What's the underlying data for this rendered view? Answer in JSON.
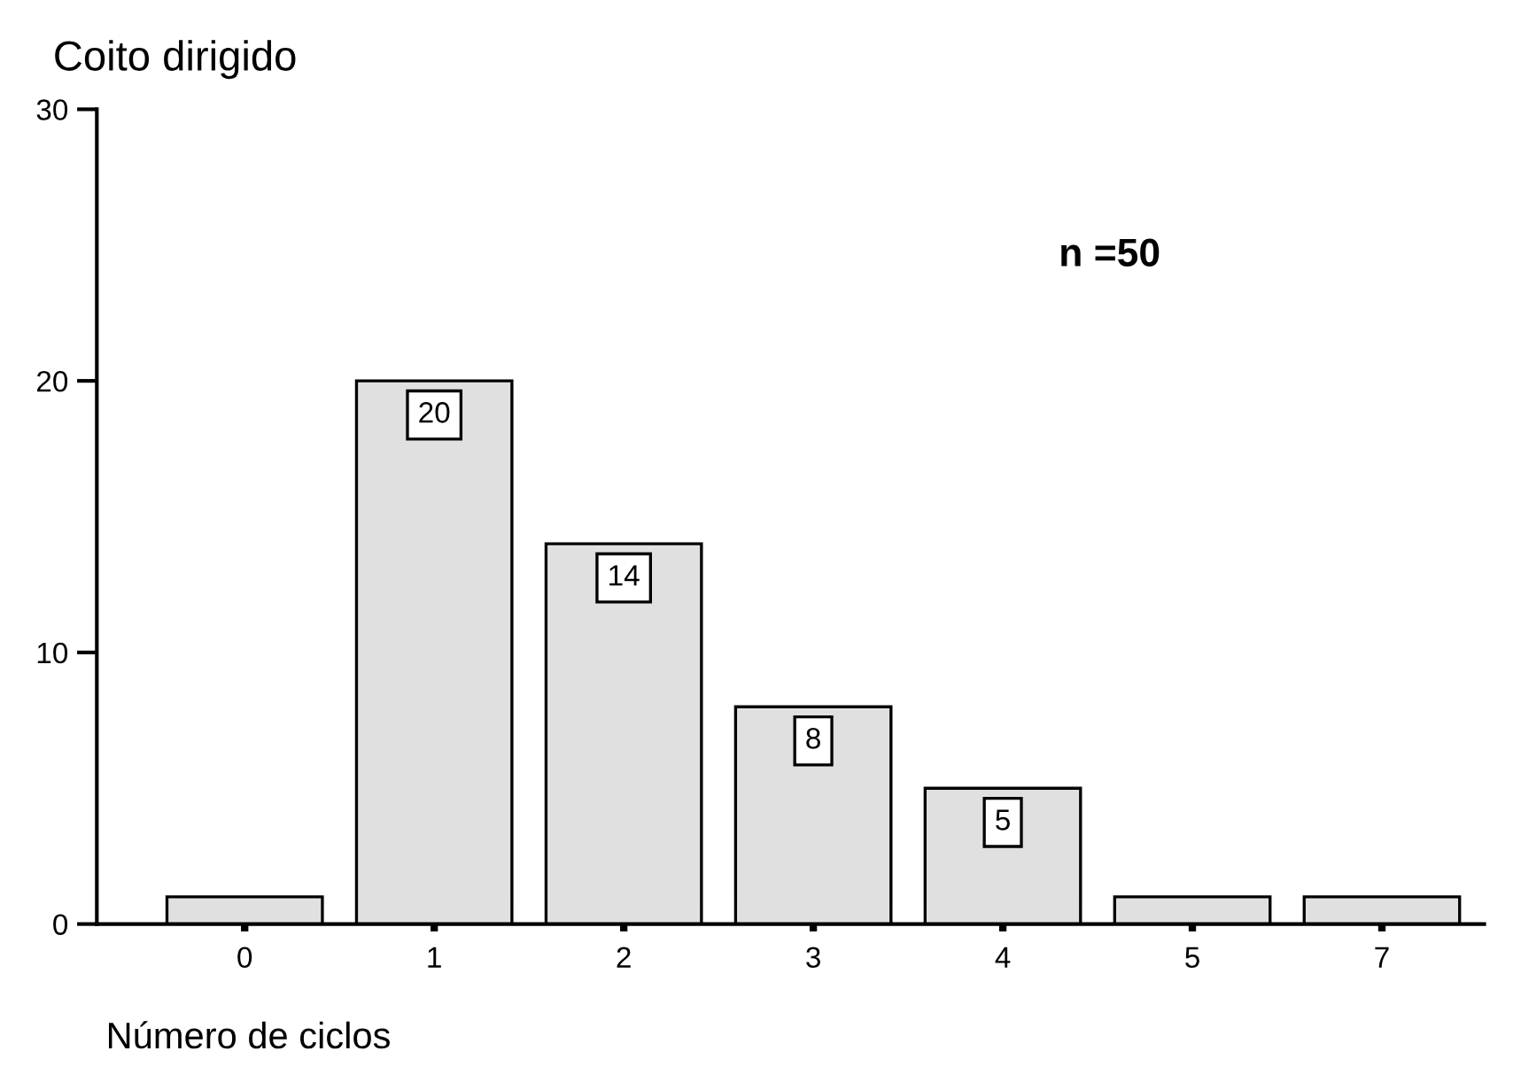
{
  "chart_data": {
    "type": "bar",
    "title": "Coito dirigido",
    "xlabel": "Número de ciclos",
    "categories": [
      "0",
      "1",
      "2",
      "3",
      "4",
      "5",
      "7"
    ],
    "values": [
      1,
      20,
      14,
      8,
      5,
      1,
      1
    ],
    "value_labels": [
      null,
      "20",
      "14",
      "8",
      "5",
      null,
      null
    ],
    "color": "#e0e0e0",
    "ylim": [
      0,
      30
    ],
    "yticks": [
      0,
      10,
      20,
      30
    ],
    "grid": false,
    "legend": false,
    "annotations": [
      "n =50"
    ]
  }
}
